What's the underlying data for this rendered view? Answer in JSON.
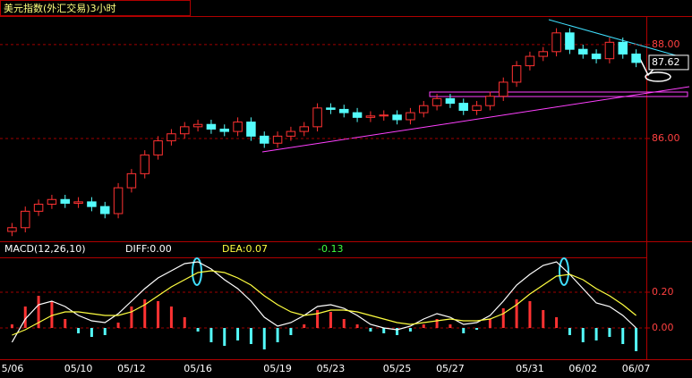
{
  "chart_data": [
    {
      "type": "candlestick",
      "title": "美元指数(外汇交易)3小时",
      "categories": [
        "5/06",
        null,
        null,
        null,
        null,
        "05/10",
        null,
        null,
        null,
        "05/12",
        null,
        null,
        null,
        null,
        "05/16",
        null,
        null,
        null,
        null,
        null,
        "05/19",
        null,
        null,
        null,
        "05/23",
        null,
        null,
        null,
        null,
        "05/25",
        null,
        null,
        null,
        "05/27",
        null,
        null,
        null,
        null,
        null,
        "05/31",
        null,
        null,
        null,
        "06/02",
        null,
        null,
        null,
        "06/07"
      ],
      "open": [
        84.02,
        84.1,
        84.45,
        84.6,
        84.7,
        84.62,
        84.65,
        84.55,
        84.4,
        84.95,
        85.25,
        85.65,
        85.95,
        86.1,
        86.25,
        86.3,
        86.2,
        86.15,
        86.35,
        86.05,
        85.9,
        86.05,
        86.15,
        86.25,
        86.65,
        86.62,
        86.55,
        86.45,
        86.48,
        86.5,
        86.4,
        86.55,
        86.7,
        86.85,
        86.75,
        86.6,
        86.7,
        86.9,
        87.2,
        87.55,
        87.75,
        87.85,
        88.25,
        87.9,
        87.8,
        87.7,
        88.05,
        87.8
      ],
      "high": [
        84.2,
        84.55,
        84.7,
        84.8,
        84.8,
        84.75,
        84.75,
        84.65,
        85.05,
        85.35,
        85.75,
        86.05,
        86.2,
        86.35,
        86.4,
        86.4,
        86.3,
        86.45,
        86.45,
        86.15,
        86.15,
        86.25,
        86.35,
        86.75,
        86.75,
        86.72,
        86.65,
        86.58,
        86.6,
        86.6,
        86.65,
        86.8,
        86.95,
        86.95,
        86.85,
        86.8,
        87.0,
        87.3,
        87.65,
        87.85,
        87.95,
        88.35,
        88.35,
        88.0,
        87.9,
        88.15,
        88.15,
        87.9
      ],
      "low": [
        83.92,
        84.0,
        84.35,
        84.5,
        84.52,
        84.52,
        84.45,
        84.3,
        84.3,
        84.85,
        85.15,
        85.55,
        85.85,
        86.0,
        86.15,
        86.1,
        86.05,
        86.05,
        85.95,
        85.8,
        85.8,
        85.95,
        86.05,
        86.15,
        86.52,
        86.45,
        86.35,
        86.35,
        86.38,
        86.3,
        86.3,
        86.45,
        86.6,
        86.65,
        86.5,
        86.5,
        86.6,
        86.8,
        87.1,
        87.45,
        87.65,
        87.75,
        87.8,
        87.7,
        87.6,
        87.6,
        87.7,
        87.52
      ],
      "close": [
        84.1,
        84.45,
        84.6,
        84.7,
        84.62,
        84.65,
        84.55,
        84.4,
        84.95,
        85.25,
        85.65,
        85.95,
        86.1,
        86.25,
        86.3,
        86.2,
        86.15,
        86.35,
        86.05,
        85.9,
        86.05,
        86.15,
        86.25,
        86.65,
        86.62,
        86.55,
        86.45,
        86.48,
        86.5,
        86.4,
        86.55,
        86.7,
        86.85,
        86.75,
        86.6,
        86.7,
        86.9,
        87.2,
        87.55,
        87.75,
        87.85,
        88.25,
        87.9,
        87.8,
        87.7,
        88.05,
        87.8,
        87.62
      ],
      "up_color": "#ff3232",
      "down_color": "#54fcfc",
      "last_price": 87.62,
      "ylim": [
        83.81,
        88.57
      ],
      "yticks": [
        {
          "value": 86,
          "label": "86.00"
        },
        {
          "value": 88,
          "label": "88.00"
        }
      ],
      "grid": true
    },
    {
      "type": "macd",
      "indicator": "MACD(12,26,10)",
      "diff_label": "DIFF:0.00",
      "dea_label": "DEA:0.07",
      "macd_label": "-0.13",
      "up_color": "#ff3232",
      "down_color": "#54fcfc",
      "values": [
        0.02,
        0.12,
        0.18,
        0.15,
        0.05,
        -0.03,
        -0.05,
        -0.04,
        0.03,
        0.12,
        0.16,
        0.15,
        0.12,
        0.06,
        -0.02,
        -0.08,
        -0.1,
        -0.07,
        -0.09,
        -0.12,
        -0.08,
        -0.04,
        0.02,
        0.1,
        0.09,
        0.05,
        0.02,
        -0.02,
        -0.03,
        -0.04,
        -0.02,
        0.02,
        0.05,
        0.02,
        -0.03,
        -0.01,
        0.05,
        0.11,
        0.16,
        0.15,
        0.1,
        0.06,
        -0.04,
        -0.08,
        -0.07,
        -0.05,
        -0.09,
        -0.13
      ],
      "series": [
        {
          "color": "#ffffff",
          "values": [
            -0.08,
            0.05,
            0.13,
            0.15,
            0.12,
            0.07,
            0.04,
            0.03,
            0.08,
            0.15,
            0.22,
            0.28,
            0.32,
            0.36,
            0.37,
            0.33,
            0.27,
            0.22,
            0.15,
            0.06,
            0.01,
            0.03,
            0.07,
            0.12,
            0.13,
            0.11,
            0.07,
            0.02,
            0.0,
            -0.01,
            0.01,
            0.05,
            0.08,
            0.06,
            0.02,
            0.03,
            0.07,
            0.15,
            0.24,
            0.3,
            0.35,
            0.37,
            0.3,
            0.22,
            0.14,
            0.12,
            0.07,
            0.0
          ]
        },
        {
          "color": "#ffff40",
          "values": [
            -0.04,
            -0.01,
            0.03,
            0.07,
            0.09,
            0.09,
            0.08,
            0.07,
            0.07,
            0.09,
            0.13,
            0.18,
            0.23,
            0.27,
            0.31,
            0.32,
            0.31,
            0.28,
            0.24,
            0.18,
            0.13,
            0.09,
            0.07,
            0.08,
            0.1,
            0.1,
            0.09,
            0.07,
            0.05,
            0.03,
            0.02,
            0.03,
            0.04,
            0.05,
            0.04,
            0.04,
            0.05,
            0.08,
            0.13,
            0.19,
            0.24,
            0.29,
            0.3,
            0.27,
            0.22,
            0.18,
            0.13,
            0.07
          ]
        }
      ],
      "ylim": [
        -0.175,
        0.395
      ],
      "yticks": [
        {
          "value": 0,
          "label": "0.00"
        },
        {
          "value": 0.2,
          "label": "0.20"
        }
      ],
      "grid": true
    }
  ]
}
